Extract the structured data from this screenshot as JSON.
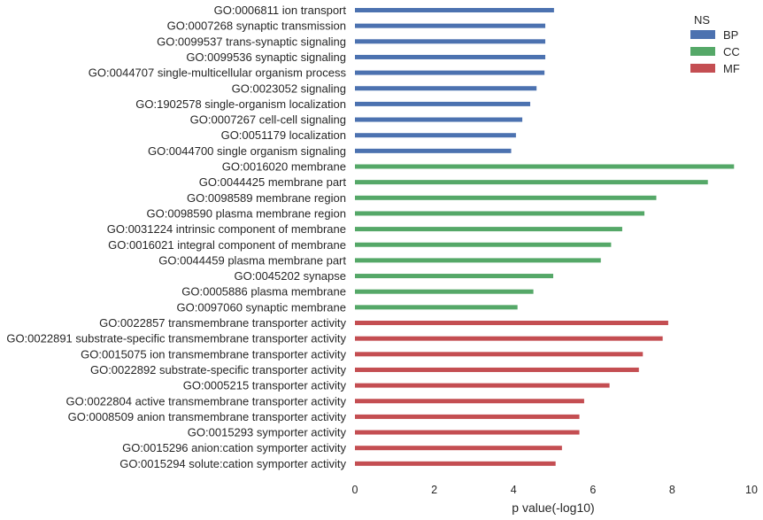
{
  "chart_data": {
    "type": "bar",
    "orientation": "horizontal",
    "xlabel": "p value(-log10)",
    "xlim": [
      0,
      10
    ],
    "xticks": [
      0,
      2,
      4,
      6,
      8,
      10
    ],
    "grid": false,
    "legend": {
      "title": "NS",
      "placement": "top-right",
      "entries": [
        {
          "name": "BP",
          "color": "#4c72b0"
        },
        {
          "name": "CC",
          "color": "#55a868"
        },
        {
          "name": "MF",
          "color": "#c44e52"
        }
      ]
    },
    "categories": [
      {
        "label": "GO:0006811 ion transport",
        "ns": "BP",
        "value": 5.02
      },
      {
        "label": "GO:0007268 synaptic transmission",
        "ns": "BP",
        "value": 4.8
      },
      {
        "label": "GO:0099537 trans-synaptic signaling",
        "ns": "BP",
        "value": 4.8
      },
      {
        "label": "GO:0099536 synaptic signaling",
        "ns": "BP",
        "value": 4.8
      },
      {
        "label": "GO:0044707 single-multicellular organism process",
        "ns": "BP",
        "value": 4.78
      },
      {
        "label": "GO:0023052 signaling",
        "ns": "BP",
        "value": 4.58
      },
      {
        "label": "GO:1902578 single-organism localization",
        "ns": "BP",
        "value": 4.42
      },
      {
        "label": "GO:0007267 cell-cell signaling",
        "ns": "BP",
        "value": 4.22
      },
      {
        "label": "GO:0051179 localization",
        "ns": "BP",
        "value": 4.06
      },
      {
        "label": "GO:0044700 single organism signaling",
        "ns": "BP",
        "value": 3.94
      },
      {
        "label": "GO:0016020 membrane",
        "ns": "CC",
        "value": 9.56
      },
      {
        "label": "GO:0044425 membrane part",
        "ns": "CC",
        "value": 8.9
      },
      {
        "label": "GO:0098589 membrane region",
        "ns": "CC",
        "value": 7.6
      },
      {
        "label": "GO:0098590 plasma membrane region",
        "ns": "CC",
        "value": 7.3
      },
      {
        "label": "GO:0031224 intrinsic component of membrane",
        "ns": "CC",
        "value": 6.74
      },
      {
        "label": "GO:0016021 integral component of membrane",
        "ns": "CC",
        "value": 6.46
      },
      {
        "label": "GO:0044459 plasma membrane part",
        "ns": "CC",
        "value": 6.2
      },
      {
        "label": "GO:0045202 synapse",
        "ns": "CC",
        "value": 5.0
      },
      {
        "label": "GO:0005886 plasma membrane",
        "ns": "CC",
        "value": 4.5
      },
      {
        "label": "GO:0097060 synaptic membrane",
        "ns": "CC",
        "value": 4.1
      },
      {
        "label": "GO:0022857 transmembrane transporter activity",
        "ns": "MF",
        "value": 7.9
      },
      {
        "label": "GO:0022891 substrate-specific transmembrane transporter activity",
        "ns": "MF",
        "value": 7.76
      },
      {
        "label": "GO:0015075 ion transmembrane transporter activity",
        "ns": "MF",
        "value": 7.26
      },
      {
        "label": "GO:0022892 substrate-specific transporter activity",
        "ns": "MF",
        "value": 7.16
      },
      {
        "label": "GO:0005215 transporter activity",
        "ns": "MF",
        "value": 6.42
      },
      {
        "label": "GO:0022804 active transmembrane transporter activity",
        "ns": "MF",
        "value": 5.78
      },
      {
        "label": "GO:0008509 anion transmembrane transporter activity",
        "ns": "MF",
        "value": 5.66
      },
      {
        "label": "GO:0015293 symporter activity",
        "ns": "MF",
        "value": 5.66
      },
      {
        "label": "GO:0015296 anion:cation symporter activity",
        "ns": "MF",
        "value": 5.22
      },
      {
        "label": "GO:0015294 solute:cation symporter activity",
        "ns": "MF",
        "value": 5.06
      }
    ]
  }
}
